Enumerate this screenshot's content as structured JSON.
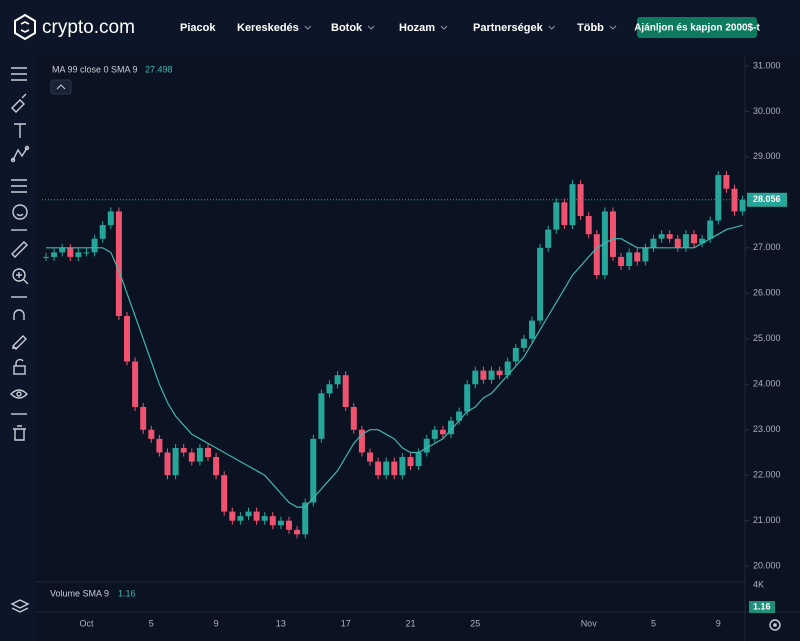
{
  "header": {
    "logo": "crypto.com",
    "nav": [
      "Piacok",
      "Kereskedés",
      "Botok",
      "Hozam",
      "Partnerségek",
      "Több"
    ],
    "cta": "Ajánljon és kapjon 2000$-t"
  },
  "chart_data": {
    "type": "candlestick",
    "indicator": "MA 99 close 0 SMA 9",
    "indicator_value": 27.498,
    "categories": [
      null,
      null,
      null,
      null,
      null,
      "Oct",
      null,
      null,
      null,
      null,
      null,
      null,
      null,
      "5",
      null,
      null,
      null,
      null,
      null,
      null,
      null,
      "9",
      null,
      null,
      null,
      null,
      null,
      null,
      null,
      "13",
      null,
      null,
      null,
      null,
      null,
      null,
      null,
      "17",
      null,
      null,
      null,
      null,
      null,
      null,
      null,
      "21",
      null,
      null,
      null,
      null,
      null,
      null,
      null,
      "25",
      null,
      null,
      null,
      null,
      null,
      null,
      null,
      null,
      null,
      null,
      null,
      null,
      null,
      "Nov",
      null,
      null,
      null,
      null,
      null,
      null,
      null,
      "5",
      null,
      null,
      null,
      null,
      null,
      null,
      null,
      "9",
      null,
      null,
      null
    ],
    "values": [
      26.8,
      26.9,
      27.0,
      26.8,
      26.9,
      26.9,
      27.2,
      27.5,
      27.8,
      25.5,
      24.5,
      23.5,
      23.0,
      22.8,
      22.5,
      22.0,
      22.6,
      22.5,
      22.3,
      22.6,
      22.4,
      22.0,
      21.2,
      21.0,
      21.1,
      21.2,
      21.0,
      21.1,
      20.9,
      21.0,
      20.8,
      20.7,
      21.4,
      22.8,
      23.8,
      24.0,
      24.2,
      23.5,
      23.0,
      22.5,
      22.3,
      22.0,
      22.3,
      22.0,
      22.4,
      22.2,
      22.5,
      22.8,
      23.0,
      22.9,
      23.2,
      23.4,
      24.0,
      24.3,
      24.1,
      24.3,
      24.2,
      24.5,
      24.8,
      25.0,
      25.4,
      27.0,
      27.4,
      28.0,
      27.5,
      28.4,
      27.7,
      27.3,
      26.4,
      27.8,
      26.8,
      26.6,
      26.9,
      26.7,
      27.0,
      27.2,
      27.3,
      27.2,
      27.0,
      27.3,
      27.1,
      27.2,
      27.6,
      28.6,
      28.3,
      27.8,
      28.056
    ],
    "ma_values": [
      27.0,
      27.0,
      27.0,
      27.0,
      27.0,
      27.0,
      27.0,
      27.0,
      26.9,
      26.5,
      26.0,
      25.5,
      25.0,
      24.5,
      24.0,
      23.6,
      23.3,
      23.1,
      22.9,
      22.8,
      22.7,
      22.6,
      22.5,
      22.4,
      22.3,
      22.2,
      22.1,
      22.0,
      21.8,
      21.6,
      21.4,
      21.3,
      21.3,
      21.5,
      21.7,
      21.9,
      22.1,
      22.4,
      22.7,
      22.9,
      23.0,
      23.0,
      22.9,
      22.8,
      22.6,
      22.5,
      22.5,
      22.6,
      22.7,
      22.8,
      23.0,
      23.2,
      23.4,
      23.5,
      23.7,
      23.8,
      24.0,
      24.2,
      24.4,
      24.6,
      24.9,
      25.2,
      25.5,
      25.8,
      26.1,
      26.4,
      26.6,
      26.8,
      27.0,
      27.1,
      27.2,
      27.2,
      27.1,
      27.0,
      27.0,
      27.0,
      27.0,
      27.0,
      27.0,
      27.0,
      27.0,
      27.1,
      27.2,
      27.3,
      27.4,
      27.45,
      27.498
    ],
    "ma_color": "#3fb6b0",
    "up_color": "#26a69a",
    "down_color": "#ef5370",
    "last_price": 28.056,
    "ylim": [
      19.74,
      31.24
    ],
    "yticks": [
      {
        "value": 20,
        "label": "20.000"
      },
      {
        "value": 21,
        "label": "21.000"
      },
      {
        "value": 22,
        "label": "22.000"
      },
      {
        "value": 23,
        "label": "23.000"
      },
      {
        "value": 24,
        "label": "24.000"
      },
      {
        "value": 25,
        "label": "25.000"
      },
      {
        "value": 26,
        "label": "26.000"
      },
      {
        "value": 27,
        "label": "27.000"
      },
      {
        "value": 28,
        "label": "28.000"
      },
      {
        "value": 29,
        "label": "29.000"
      },
      {
        "value": 30,
        "label": "30.000"
      },
      {
        "value": 31,
        "label": "31.000"
      }
    ],
    "volume": {
      "label": "Volume SMA 9",
      "value": 1.16,
      "axis_label": "4K"
    }
  }
}
